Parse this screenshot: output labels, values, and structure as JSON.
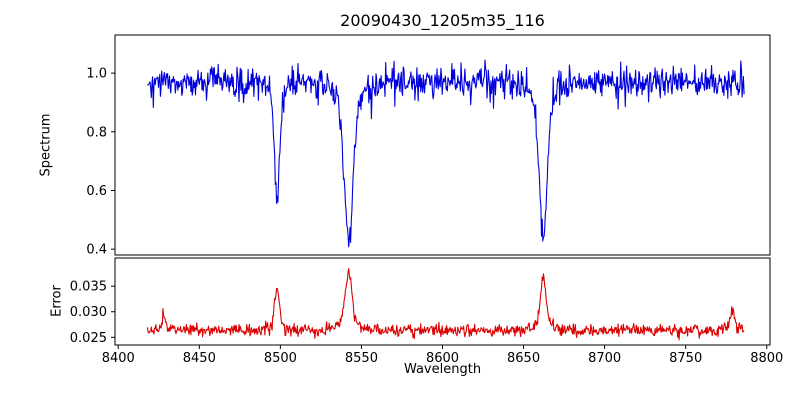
{
  "chart_data": {
    "type": "line",
    "title": "20090430_1205m35_116",
    "xlabel": "Wavelength",
    "grid": false,
    "legend": "none",
    "x_axis": {
      "lim": [
        8398,
        8802
      ],
      "ticks": [
        {
          "value": 8400,
          "label": "8400"
        },
        {
          "value": 8450,
          "label": "8450"
        },
        {
          "value": 8500,
          "label": "8500"
        },
        {
          "value": 8550,
          "label": "8550"
        },
        {
          "value": 8600,
          "label": "8600"
        },
        {
          "value": 8650,
          "label": "8650"
        },
        {
          "value": 8700,
          "label": "8700"
        },
        {
          "value": 8750,
          "label": "8750"
        },
        {
          "value": 8800,
          "label": "8800"
        }
      ]
    },
    "x_range": [
      8418,
      8786
    ],
    "n_points": 920,
    "seed": 20090430,
    "panels": [
      {
        "name": "spectrum",
        "ylabel": "Spectrum",
        "color": "#0000dd",
        "ylim": [
          0.38,
          1.13
        ],
        "yticks": [
          {
            "value": 0.4,
            "label": "0.4"
          },
          {
            "value": 0.6,
            "label": "0.6"
          },
          {
            "value": 0.8,
            "label": "0.8"
          },
          {
            "value": 1.0,
            "label": "1.0"
          }
        ],
        "baseline": 0.972,
        "noise_sigma": 0.024,
        "dip_probability": 0.04,
        "dip_extra": 0.1,
        "features": [
          {
            "center": 8498.0,
            "amplitude": -0.39,
            "width": 1.6
          },
          {
            "center": 8542.1,
            "amplitude": -0.55,
            "width": 2.6
          },
          {
            "center": 8662.1,
            "amplitude": -0.54,
            "width": 2.3
          }
        ]
      },
      {
        "name": "error",
        "ylabel": "Error",
        "color": "#dd0000",
        "ylim": [
          0.0235,
          0.0405
        ],
        "yticks": [
          {
            "value": 0.025,
            "label": "0.025"
          },
          {
            "value": 0.03,
            "label": "0.030"
          },
          {
            "value": 0.035,
            "label": "0.035"
          }
        ],
        "baseline": 0.0264,
        "noise_sigma": 0.0006,
        "features": [
          {
            "center": 8428.0,
            "amplitude": 0.003,
            "width": 1.2
          },
          {
            "center": 8498.0,
            "amplitude": 0.0085,
            "width": 1.4
          },
          {
            "center": 8542.1,
            "amplitude": 0.0115,
            "width": 1.9
          },
          {
            "center": 8662.1,
            "amplitude": 0.0105,
            "width": 1.7
          },
          {
            "center": 8779.0,
            "amplitude": 0.0045,
            "width": 1.0
          }
        ]
      }
    ]
  }
}
